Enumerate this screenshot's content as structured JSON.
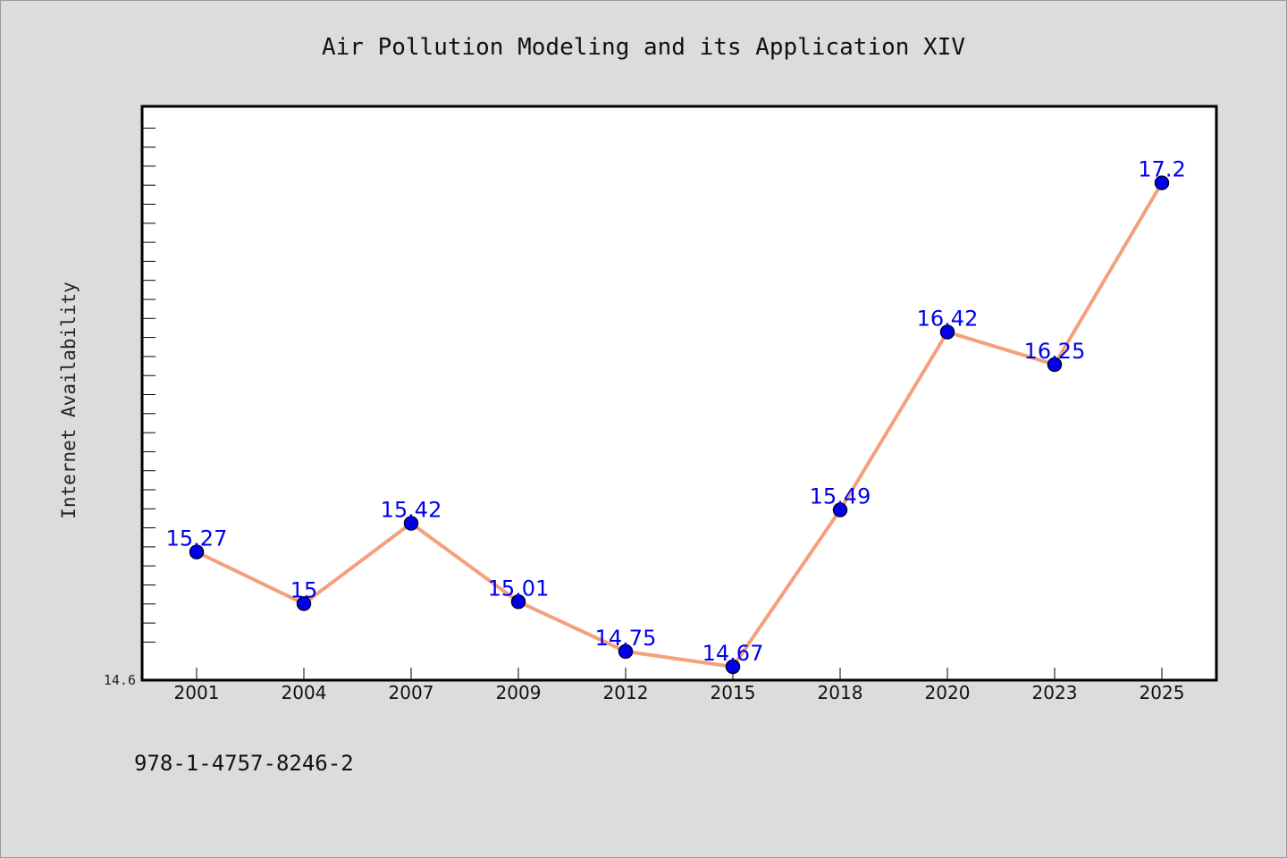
{
  "chart_data": {
    "type": "line",
    "title": "Air Pollution Modeling and its Application XIV",
    "xlabel": "",
    "ylabel": "Internet Availability",
    "categories": [
      "2001",
      "2004",
      "2007",
      "2009",
      "2012",
      "2015",
      "2018",
      "2020",
      "2023",
      "2025"
    ],
    "series": [
      {
        "values": [
          15.27,
          15.0,
          15.42,
          15.01,
          14.75,
          14.67,
          15.49,
          16.42,
          16.25,
          17.2
        ]
      }
    ],
    "data_labels": [
      "15.27",
      "15",
      "15.42",
      "15.01",
      "14.75",
      "14.67",
      "15.49",
      "16.42",
      "16.25",
      "17.2"
    ],
    "ylim": [
      14.6,
      17.6
    ],
    "ytick_labels": [
      "14.6"
    ],
    "grid": false,
    "legend": "none",
    "colors": {
      "line": "#f4a07c",
      "marker": "#0000ee",
      "label": "#0000ee",
      "plot_bg": "#ffffff",
      "page_bg": "#dcdcdc"
    }
  },
  "footer": {
    "isbn": "978-1-4757-8246-2"
  }
}
